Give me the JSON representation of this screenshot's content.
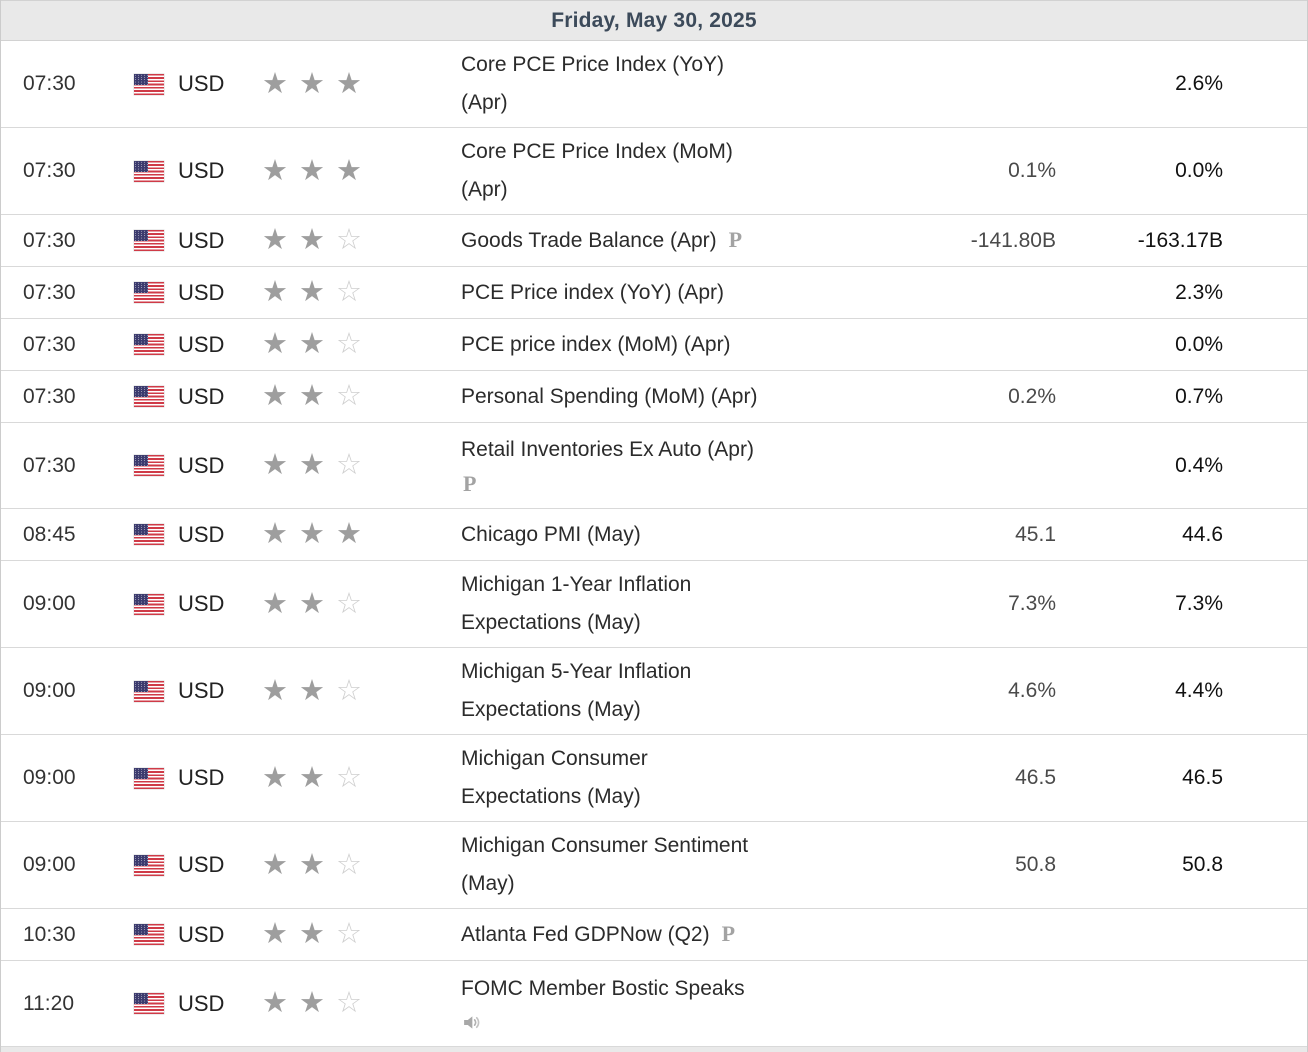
{
  "header": {
    "date_label": "Friday, May 30, 2025"
  },
  "currency": "USD",
  "flag": "us-flag-icon",
  "colors": {
    "header_bg": "#e9e9e9",
    "header_text": "#3c4a5a",
    "star_filled": "#9e9e9e",
    "star_empty": "#cfcfcf",
    "flag_blue": "#3c3b6e",
    "flag_red": "#cf3a47"
  },
  "icons": {
    "preliminary": "P",
    "speech": "speaker-icon"
  },
  "rows": [
    {
      "time": "07:30",
      "currency": "USD",
      "importance": 3,
      "event_lines": [
        "Core PCE Price Index (YoY)",
        "(Apr)"
      ],
      "event_icon": "",
      "icon_placement": "",
      "forecast": "",
      "previous": "2.6%"
    },
    {
      "time": "07:30",
      "currency": "USD",
      "importance": 3,
      "event_lines": [
        "Core PCE Price Index (MoM)",
        "(Apr)"
      ],
      "event_icon": "",
      "icon_placement": "",
      "forecast": "0.1%",
      "previous": "0.0%"
    },
    {
      "time": "07:30",
      "currency": "USD",
      "importance": 2,
      "event_lines": [
        "Goods Trade Balance (Apr)"
      ],
      "event_icon": "preliminary",
      "icon_placement": "inline",
      "forecast": "-141.80B",
      "previous": "-163.17B"
    },
    {
      "time": "07:30",
      "currency": "USD",
      "importance": 2,
      "event_lines": [
        "PCE Price index (YoY) (Apr)"
      ],
      "event_icon": "",
      "icon_placement": "",
      "forecast": "",
      "previous": "2.3%"
    },
    {
      "time": "07:30",
      "currency": "USD",
      "importance": 2,
      "event_lines": [
        "PCE price index (MoM) (Apr)"
      ],
      "event_icon": "",
      "icon_placement": "",
      "forecast": "",
      "previous": "0.0%"
    },
    {
      "time": "07:30",
      "currency": "USD",
      "importance": 2,
      "event_lines": [
        "Personal Spending (MoM) (Apr)"
      ],
      "event_icon": "",
      "icon_placement": "",
      "forecast": "0.2%",
      "previous": "0.7%"
    },
    {
      "time": "07:30",
      "currency": "USD",
      "importance": 2,
      "event_lines": [
        "Retail Inventories Ex Auto (Apr)"
      ],
      "event_icon": "preliminary",
      "icon_placement": "below",
      "forecast": "",
      "previous": "0.4%"
    },
    {
      "time": "08:45",
      "currency": "USD",
      "importance": 3,
      "event_lines": [
        "Chicago PMI (May)"
      ],
      "event_icon": "",
      "icon_placement": "",
      "forecast": "45.1",
      "previous": "44.6"
    },
    {
      "time": "09:00",
      "currency": "USD",
      "importance": 2,
      "event_lines": [
        "Michigan 1-Year Inflation",
        "Expectations (May)"
      ],
      "event_icon": "",
      "icon_placement": "",
      "forecast": "7.3%",
      "previous": "7.3%"
    },
    {
      "time": "09:00",
      "currency": "USD",
      "importance": 2,
      "event_lines": [
        "Michigan 5-Year Inflation",
        "Expectations (May)"
      ],
      "event_icon": "",
      "icon_placement": "",
      "forecast": "4.6%",
      "previous": "4.4%"
    },
    {
      "time": "09:00",
      "currency": "USD",
      "importance": 2,
      "event_lines": [
        "Michigan Consumer",
        "Expectations (May)"
      ],
      "event_icon": "",
      "icon_placement": "",
      "forecast": "46.5",
      "previous": "46.5"
    },
    {
      "time": "09:00",
      "currency": "USD",
      "importance": 2,
      "event_lines": [
        "Michigan Consumer Sentiment",
        "(May)"
      ],
      "event_icon": "",
      "icon_placement": "",
      "forecast": "50.8",
      "previous": "50.8"
    },
    {
      "time": "10:30",
      "currency": "USD",
      "importance": 2,
      "event_lines": [
        "Atlanta Fed GDPNow (Q2)"
      ],
      "event_icon": "preliminary",
      "icon_placement": "inline",
      "forecast": "",
      "previous": ""
    },
    {
      "time": "11:20",
      "currency": "USD",
      "importance": 2,
      "event_lines": [
        "FOMC Member Bostic Speaks"
      ],
      "event_icon": "speech",
      "icon_placement": "below",
      "forecast": "",
      "previous": ""
    }
  ]
}
